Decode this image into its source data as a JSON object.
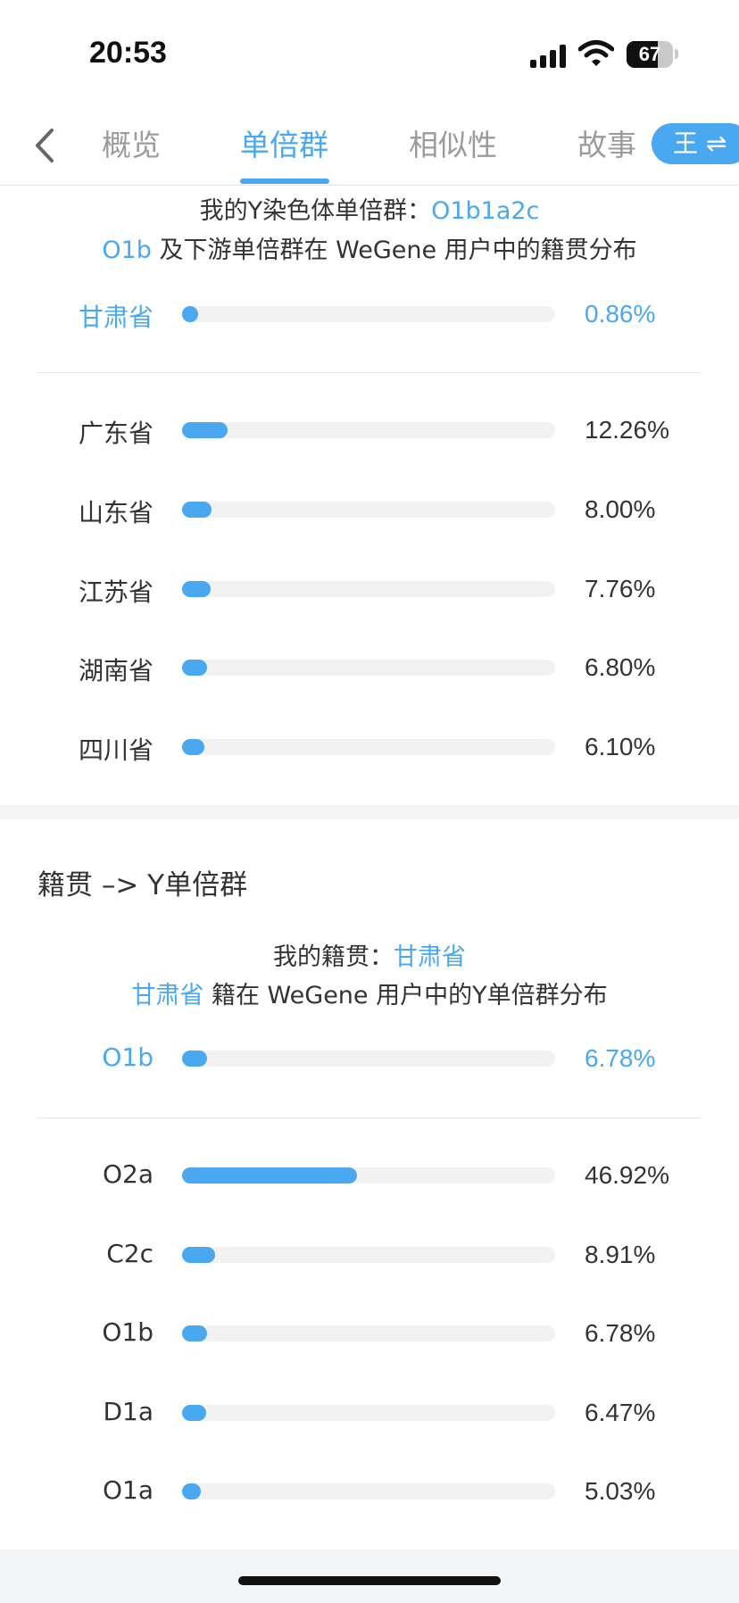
{
  "status_bar": {
    "time": "20:53",
    "battery": "67"
  },
  "tabs": [
    {
      "label": "概览"
    },
    {
      "label": "单倍群"
    },
    {
      "label": "相似性"
    },
    {
      "label": "故事"
    }
  ],
  "switch_button": {
    "label": "王 ⇌"
  },
  "haplogroup_section": {
    "my_label": "我的Y染色体单倍群：",
    "my_value": "O1b1a2c",
    "dist_prefix": "O1b",
    "dist_suffix": " 及下游单倍群在 WeGene 用户中的籍贯分布",
    "highlight": {
      "label": "甘肃省",
      "value": "0.86%",
      "fraction": 0.0086
    },
    "rows": [
      {
        "label": "广东省",
        "value": "12.26%",
        "fraction": 0.1226
      },
      {
        "label": "山东省",
        "value": "8.00%",
        "fraction": 0.08
      },
      {
        "label": "江苏省",
        "value": "7.76%",
        "fraction": 0.0776
      },
      {
        "label": "湖南省",
        "value": "6.80%",
        "fraction": 0.068
      },
      {
        "label": "四川省",
        "value": "6.10%",
        "fraction": 0.061
      }
    ]
  },
  "origin_section": {
    "heading": "籍贯 –> Y单倍群",
    "my_label": "我的籍贯：",
    "my_value": "甘肃省",
    "dist_prefix": "甘肃省",
    "dist_suffix": " 籍在 WeGene 用户中的Y单倍群分布",
    "highlight": {
      "label": "O1b",
      "value": "6.78%",
      "fraction": 0.0678
    },
    "rows": [
      {
        "label": "O2a",
        "value": "46.92%",
        "fraction": 0.4692
      },
      {
        "label": "C2c",
        "value": "8.91%",
        "fraction": 0.0891
      },
      {
        "label": "O1b",
        "value": "6.78%",
        "fraction": 0.0678
      },
      {
        "label": "D1a",
        "value": "6.47%",
        "fraction": 0.0647
      },
      {
        "label": "O1a",
        "value": "5.03%",
        "fraction": 0.0503
      }
    ]
  },
  "colors": {
    "accent": "#4aa8f0",
    "track": "#f2f2f2",
    "text": "#333333",
    "muted": "#9b9b9b"
  }
}
